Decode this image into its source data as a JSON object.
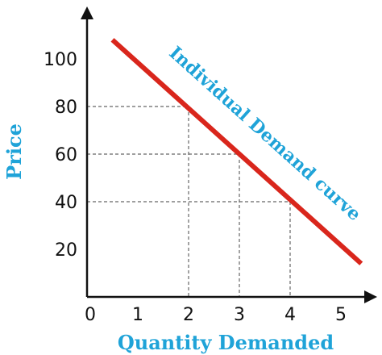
{
  "chart_data": {
    "type": "line",
    "title": "",
    "xlabel": "Quantity Demanded",
    "ylabel": "Price",
    "x_ticks": [
      "0",
      "1",
      "2",
      "3",
      "4",
      "5"
    ],
    "y_ticks": [
      "20",
      "40",
      "60",
      "80",
      "100"
    ],
    "xlim": [
      0,
      5.5
    ],
    "ylim": [
      0,
      115
    ],
    "series": [
      {
        "name": "Individual Demand curve",
        "x": [
          0.5,
          5.4
        ],
        "y": [
          108,
          14
        ]
      }
    ],
    "reference_points": [
      {
        "x": 2,
        "y": 80
      },
      {
        "x": 3,
        "y": 60
      },
      {
        "x": 4,
        "y": 40
      }
    ],
    "grid": false,
    "colors": {
      "curve": "#d9261c",
      "labels": "#1fa3d8",
      "axis": "#111111",
      "guides": "#666666"
    }
  }
}
